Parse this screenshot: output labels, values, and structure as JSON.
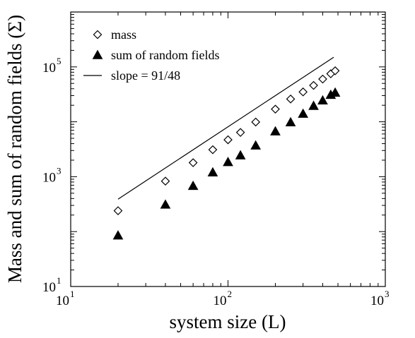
{
  "chart_data": {
    "type": "scatter",
    "xscale": "log",
    "yscale": "log",
    "xlim": [
      10,
      1000
    ],
    "ylim": [
      10,
      1000000
    ],
    "xlabel": "system size (L)",
    "ylabel": "Mass and sum of random fields (Σ)",
    "xticks": [
      {
        "base": "10",
        "exp": "1",
        "value": 10
      },
      {
        "base": "10",
        "exp": "2",
        "value": 100
      },
      {
        "base": "10",
        "exp": "3",
        "value": 1000
      }
    ],
    "yticks": [
      {
        "base": "10",
        "exp": "1",
        "value": 10
      },
      {
        "base": "10",
        "exp": "3",
        "value": 1000
      },
      {
        "base": "10",
        "exp": "5",
        "value": 100000
      }
    ],
    "legend_position": "top-left",
    "series": [
      {
        "name": "mass",
        "marker": "diamond-open",
        "x": [
          20,
          40,
          60,
          80,
          100,
          120,
          150,
          200,
          250,
          300,
          350,
          400,
          450,
          480
        ],
        "y": [
          240,
          830,
          1800,
          3100,
          4700,
          6400,
          9900,
          17000,
          26000,
          35000,
          46000,
          60000,
          75000,
          85000
        ]
      },
      {
        "name": "sum of random fields",
        "marker": "triangle-filled",
        "x": [
          20,
          40,
          60,
          80,
          100,
          120,
          150,
          200,
          250,
          300,
          350,
          400,
          450,
          480
        ],
        "y": [
          85,
          310,
          680,
          1200,
          1850,
          2450,
          3700,
          6700,
          9800,
          14000,
          19500,
          24500,
          31000,
          34000
        ]
      },
      {
        "name": "slope = 91/48",
        "marker": "line",
        "x": [
          20,
          470
        ],
        "y": [
          390,
          150000
        ]
      }
    ]
  }
}
